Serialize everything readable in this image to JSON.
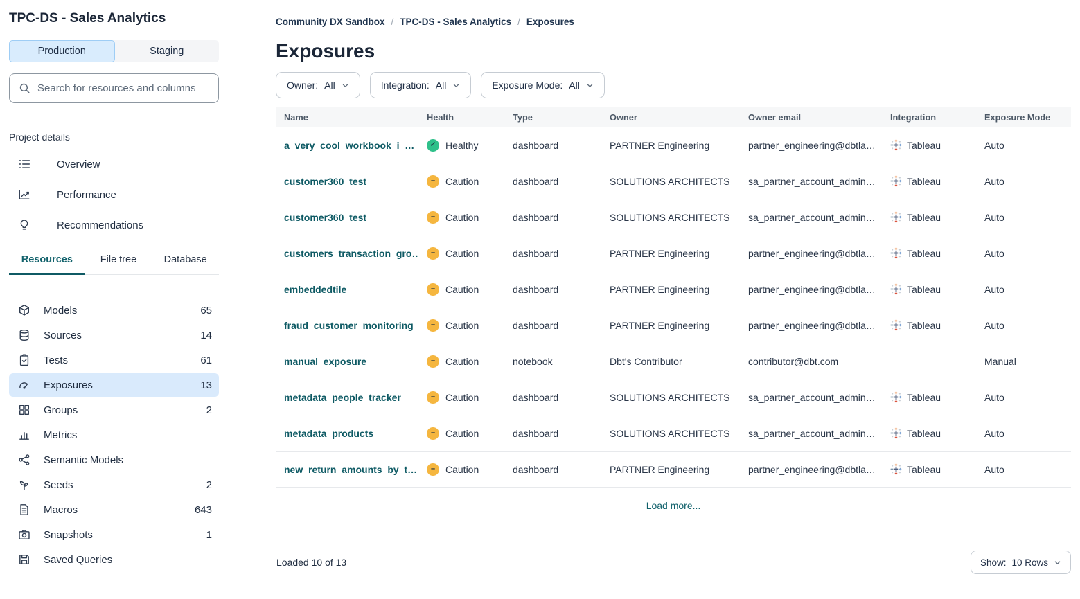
{
  "app": {
    "title": "TPC-DS - Sales Analytics"
  },
  "colors": {
    "healthy_green": "#2fc08a",
    "caution_amber": "#f5b63f",
    "link_teal": "#0e5a64",
    "selected_blue": "#d9eafc",
    "env_active_blue": "#d9ecfd"
  },
  "sidebar": {
    "env_tabs": [
      {
        "label": "Production",
        "active": true
      },
      {
        "label": "Staging",
        "active": false
      }
    ],
    "search": {
      "placeholder": "Search for resources and columns"
    },
    "project_details_label": "Project details",
    "project_links": [
      {
        "label": "Overview",
        "icon": "overview"
      },
      {
        "label": "Performance",
        "icon": "performance"
      },
      {
        "label": "Recommendations",
        "icon": "recommendations"
      }
    ],
    "tabs": [
      {
        "label": "Resources",
        "active": true
      },
      {
        "label": "File tree",
        "active": false
      },
      {
        "label": "Database",
        "active": false
      }
    ],
    "resources": [
      {
        "label": "Models",
        "count": "65",
        "icon": "cube",
        "selected": false
      },
      {
        "label": "Sources",
        "count": "14",
        "icon": "database",
        "selected": false
      },
      {
        "label": "Tests",
        "count": "61",
        "icon": "clipboard-check",
        "selected": false
      },
      {
        "label": "Exposures",
        "count": "13",
        "icon": "gauge",
        "selected": true
      },
      {
        "label": "Groups",
        "count": "2",
        "icon": "grid",
        "selected": false
      },
      {
        "label": "Metrics",
        "count": "",
        "icon": "bar-chart",
        "selected": false
      },
      {
        "label": "Semantic Models",
        "count": "",
        "icon": "network",
        "selected": false
      },
      {
        "label": "Seeds",
        "count": "2",
        "icon": "sprout",
        "selected": false
      },
      {
        "label": "Macros",
        "count": "643",
        "icon": "file-text",
        "selected": false
      },
      {
        "label": "Snapshots",
        "count": "1",
        "icon": "camera",
        "selected": false
      },
      {
        "label": "Saved Queries",
        "count": "",
        "icon": "floppy",
        "selected": false
      }
    ]
  },
  "main": {
    "breadcrumb": [
      "Community DX Sandbox",
      "TPC-DS - Sales Analytics",
      "Exposures"
    ],
    "breadcrumb_sep": "/",
    "title": "Exposures",
    "filters": [
      {
        "label": "Owner:",
        "value": "All"
      },
      {
        "label": "Integration:",
        "value": "All"
      },
      {
        "label": "Exposure Mode:",
        "value": "All"
      }
    ],
    "table": {
      "columns": [
        "Name",
        "Health",
        "Type",
        "Owner",
        "Owner email",
        "Integration",
        "Exposure Mode"
      ],
      "health_symbols": {
        "healthy": "✓",
        "caution": "–"
      },
      "rows": [
        {
          "name": "a_very_cool_workbook_i_…",
          "health": "Healthy",
          "health_status": "healthy",
          "type": "dashboard",
          "owner": "PARTNER Engineering",
          "email": "partner_engineering@dbtla…",
          "integration": "Tableau",
          "mode": "Auto"
        },
        {
          "name": "customer360_test",
          "health": "Caution",
          "health_status": "caution",
          "type": "dashboard",
          "owner": "SOLUTIONS ARCHITECTS",
          "email": "sa_partner_account_admin…",
          "integration": "Tableau",
          "mode": "Auto"
        },
        {
          "name": "customer360_test",
          "health": "Caution",
          "health_status": "caution",
          "type": "dashboard",
          "owner": "SOLUTIONS ARCHITECTS",
          "email": "sa_partner_account_admin…",
          "integration": "Tableau",
          "mode": "Auto"
        },
        {
          "name": "customers_transaction_gro…",
          "health": "Caution",
          "health_status": "caution",
          "type": "dashboard",
          "owner": "PARTNER Engineering",
          "email": "partner_engineering@dbtla…",
          "integration": "Tableau",
          "mode": "Auto"
        },
        {
          "name": "embeddedtile",
          "health": "Caution",
          "health_status": "caution",
          "type": "dashboard",
          "owner": "PARTNER Engineering",
          "email": "partner_engineering@dbtla…",
          "integration": "Tableau",
          "mode": "Auto"
        },
        {
          "name": "fraud_customer_monitoring",
          "health": "Caution",
          "health_status": "caution",
          "type": "dashboard",
          "owner": "PARTNER Engineering",
          "email": "partner_engineering@dbtla…",
          "integration": "Tableau",
          "mode": "Auto"
        },
        {
          "name": "manual_exposure",
          "health": "Caution",
          "health_status": "caution",
          "type": "notebook",
          "owner": "Dbt's Contributor",
          "email": "contributor@dbt.com",
          "integration": "",
          "mode": "Manual"
        },
        {
          "name": "metadata_people_tracker",
          "health": "Caution",
          "health_status": "caution",
          "type": "dashboard",
          "owner": "SOLUTIONS ARCHITECTS",
          "email": "sa_partner_account_admin…",
          "integration": "Tableau",
          "mode": "Auto"
        },
        {
          "name": "metadata_products",
          "health": "Caution",
          "health_status": "caution",
          "type": "dashboard",
          "owner": "SOLUTIONS ARCHITECTS",
          "email": "sa_partner_account_admin…",
          "integration": "Tableau",
          "mode": "Auto"
        },
        {
          "name": "new_return_amounts_by_t…",
          "health": "Caution",
          "health_status": "caution",
          "type": "dashboard",
          "owner": "PARTNER Engineering",
          "email": "partner_engineering@dbtla…",
          "integration": "Tableau",
          "mode": "Auto"
        }
      ]
    },
    "load_more": "Load more...",
    "footer": {
      "loaded_text": "Loaded 10 of 13",
      "show_label": "Show:",
      "show_value": "10 Rows"
    }
  }
}
